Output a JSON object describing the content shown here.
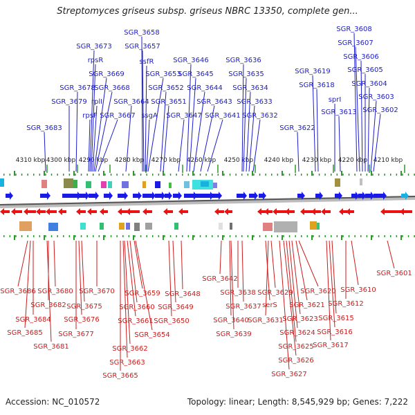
{
  "title": "Streptomyces griseus subsp. griseus NBRC 13350, complete gen...",
  "accession_text": "Accession: NC_010572",
  "summary_text": "Topology: linear; Length: 8,545,929 bp; Genes: 7,222",
  "colors": {
    "top_strand_label": "#1a1acc",
    "bottom_strand_label": "#cc1a1a",
    "top_gene": "#1a1ae6",
    "bottom_gene": "#ee1111",
    "tick": "#2a9a2a",
    "backbone": "#888888"
  },
  "scale_ticks": [
    "4310 kbp",
    "4300 kbp",
    "4290 kbp",
    "4280 kbp",
    "4270 kbp",
    "4260 kbp",
    "4250 kbp",
    "4240 kbp",
    "4230 kbp",
    "4220 kbp",
    "4210 kbp"
  ],
  "top_labels": [
    "SGR_3683",
    "SGR_3679",
    "SGR_3678",
    "SGR_3673",
    "rpsR",
    "SGR_3669",
    "SGR_3668",
    "rplI",
    "rpsF",
    "SGR_3667",
    "SGR_3664",
    "SGR_3658",
    "SGR_3657",
    "ssfR",
    "SGR_3653",
    "ssgA",
    "SGR_3652",
    "SGR_3651",
    "SGR_3647",
    "SGR_3646",
    "SGR_3645",
    "SGR_3644",
    "SGR_3643",
    "SGR_3641",
    "SGR_3636",
    "SGR_3635",
    "SGR_3634",
    "SGR_3633",
    "SGR_3632",
    "SGR_3622",
    "SGR_3619",
    "SGR_3618",
    "sprI",
    "SGR_3613",
    "SGR_3608",
    "SGR_3607",
    "SGR_3606",
    "SGR_3605",
    "SGR_3604",
    "SGR_3603",
    "SGR_3602"
  ],
  "bottom_labels": [
    "SGR_3686",
    "SGR_3685",
    "SGR_3684",
    "SGR_3682",
    "SGR_3681",
    "SGR_3680",
    "SGR_3677",
    "SGR_3676",
    "SGR_3675",
    "SGR_3670",
    "SGR_3665",
    "SGR_3663",
    "SGR_3662",
    "SGR_3661",
    "SGR_3660",
    "SGR_3659",
    "SGR_3654",
    "SGR_3650",
    "SGR_3649",
    "SGR_3648",
    "SGR_3642",
    "SGR_3640",
    "SGR_3639",
    "SGR_3638",
    "SGR_3637",
    "serS",
    "SGR_3631",
    "SGR_3629",
    "SGR_3627",
    "SGR_3626",
    "SGR_3625",
    "SGR_3624",
    "SGR_3623",
    "SGR_3621",
    "SGR_3620",
    "SGR_3617",
    "SGR_3616",
    "SGR_3615",
    "SGR_3612",
    "SGR_3610",
    "SGR_3601"
  ]
}
